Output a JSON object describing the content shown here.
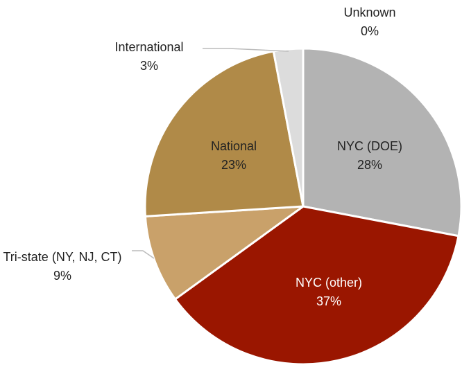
{
  "chart_data": {
    "type": "pie",
    "categories": [
      "NYC (DOE)",
      "NYC (other)",
      "Tri-state (NY, NJ, CT)",
      "National",
      "International",
      "Unknown"
    ],
    "values": [
      28,
      37,
      9,
      23,
      3,
      0
    ],
    "value_labels": [
      "28%",
      "37%",
      "9%",
      "23%",
      "3%",
      "0%"
    ],
    "colors": [
      "#b3b3b3",
      "#9a1600",
      "#c9a16a",
      "#b08a48",
      "#dcdcdc",
      "#e8e8e8"
    ]
  }
}
